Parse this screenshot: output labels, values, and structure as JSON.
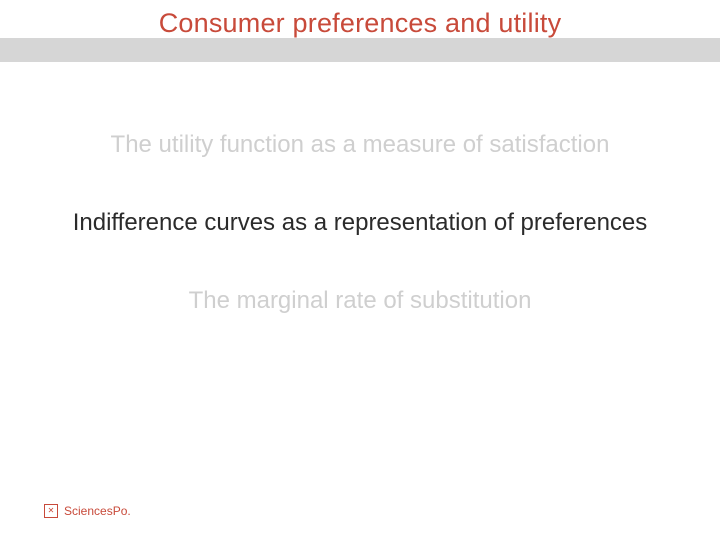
{
  "slide": {
    "title": "Consumer preferences and utility",
    "title_color": "#c84a3a",
    "title_fontsize": 27,
    "header_band_color": "#d6d6d6",
    "background_color": "#ffffff",
    "items": [
      {
        "text": "The utility function as a measure of satisfaction",
        "faded": true
      },
      {
        "text": "Indifference curves as a representation of preferences",
        "faded": false
      },
      {
        "text": "The marginal rate of substitution",
        "faded": true
      }
    ],
    "item_fontsize": 24,
    "faded_color": "#cfcfcf",
    "active_color": "#2b2b2b"
  },
  "footer": {
    "brand": "SciencesPo.",
    "brand_color": "#c84a3a",
    "logo_glyph": "✕"
  }
}
